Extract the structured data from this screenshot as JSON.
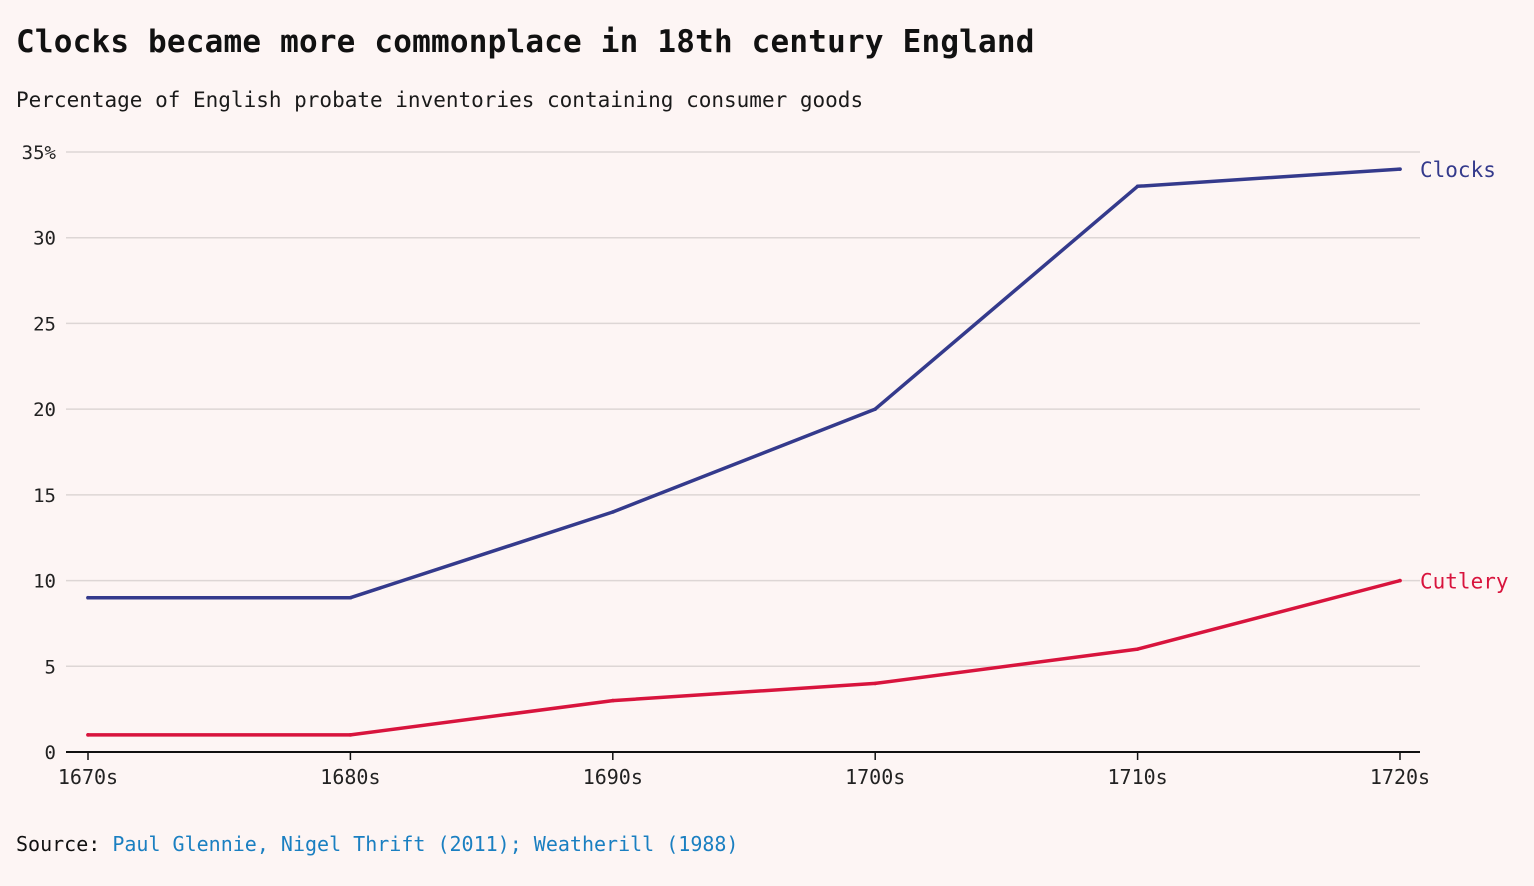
{
  "title": "Clocks became more commonplace in 18th century England",
  "subtitle": "Percentage of English probate inventories containing consumer goods",
  "source": {
    "label": "Source:",
    "link_text": "Paul Glennie, Nigel Thrift (2011); Weatherill (1988)"
  },
  "colors": {
    "background": "#fdf5f4",
    "grid": "#ddd6d5",
    "axis": "#111111",
    "link": "#1a7fc1"
  },
  "chart_data": {
    "type": "line",
    "title": "Clocks became more commonplace in 18th century England",
    "subtitle": "Percentage of English probate inventories containing consumer goods",
    "xlabel": "",
    "ylabel": "",
    "categories": [
      "1670s",
      "1680s",
      "1690s",
      "1700s",
      "1710s",
      "1720s"
    ],
    "ylim": [
      0,
      35
    ],
    "yticks": [
      0,
      5,
      10,
      15,
      20,
      25,
      30,
      35
    ],
    "ytick_labels": [
      "0",
      "5",
      "10",
      "15",
      "20",
      "25",
      "30",
      "35%"
    ],
    "grid": true,
    "legend": "direct labels at line ends (right)",
    "series": [
      {
        "name": "Clocks",
        "color": "#343a8c",
        "values": [
          9,
          9,
          14,
          20,
          33,
          34
        ]
      },
      {
        "name": "Cutlery",
        "color": "#d8143d",
        "values": [
          1,
          1,
          3,
          4,
          6,
          10
        ]
      }
    ]
  }
}
